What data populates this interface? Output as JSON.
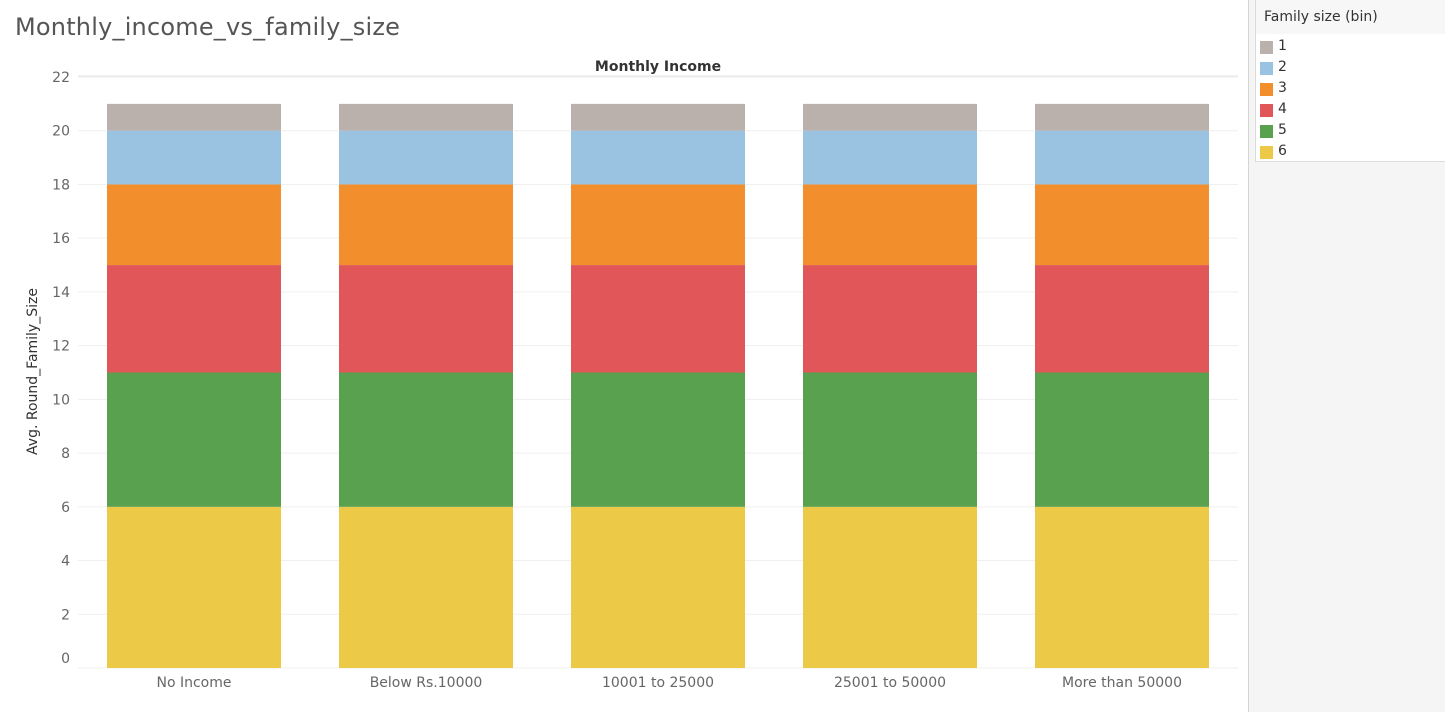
{
  "worksheet": {
    "title": "Monthly_income_vs_family_size"
  },
  "legend": {
    "title": "Family size (bin)",
    "items": [
      {
        "label": "1",
        "color": "#bab0ac"
      },
      {
        "label": "2",
        "color": "#9ac3e1"
      },
      {
        "label": "3",
        "color": "#f28e2b"
      },
      {
        "label": "4",
        "color": "#e15759"
      },
      {
        "label": "5",
        "color": "#59a14f"
      },
      {
        "label": "6",
        "color": "#edc948"
      }
    ]
  },
  "chart_data": {
    "type": "bar",
    "stacked": true,
    "column_header": "Monthly Income",
    "ylabel": "Avg. Round_Family_Size",
    "ylim": [
      0,
      22
    ],
    "yticks": [
      0,
      2,
      4,
      6,
      8,
      10,
      12,
      14,
      16,
      18,
      20,
      22
    ],
    "categories": [
      "No Income",
      "Below Rs.10000",
      "10001 to 25000",
      "25001 to 50000",
      "More than 50000"
    ],
    "series": [
      {
        "name": "6",
        "color": "#edc948",
        "values": [
          6,
          6,
          6,
          6,
          6
        ]
      },
      {
        "name": "5",
        "color": "#59a14f",
        "values": [
          5,
          5,
          5,
          5,
          5
        ]
      },
      {
        "name": "4",
        "color": "#e15759",
        "values": [
          4,
          4,
          4,
          4,
          4
        ]
      },
      {
        "name": "3",
        "color": "#f28e2b",
        "values": [
          3,
          3,
          3,
          3,
          3
        ]
      },
      {
        "name": "2",
        "color": "#9ac3e1",
        "values": [
          2,
          2,
          2,
          2,
          2
        ]
      },
      {
        "name": "1",
        "color": "#bab0ac",
        "values": [
          1,
          1,
          1,
          1,
          1
        ]
      }
    ],
    "grid": true,
    "legend_position": "right"
  }
}
